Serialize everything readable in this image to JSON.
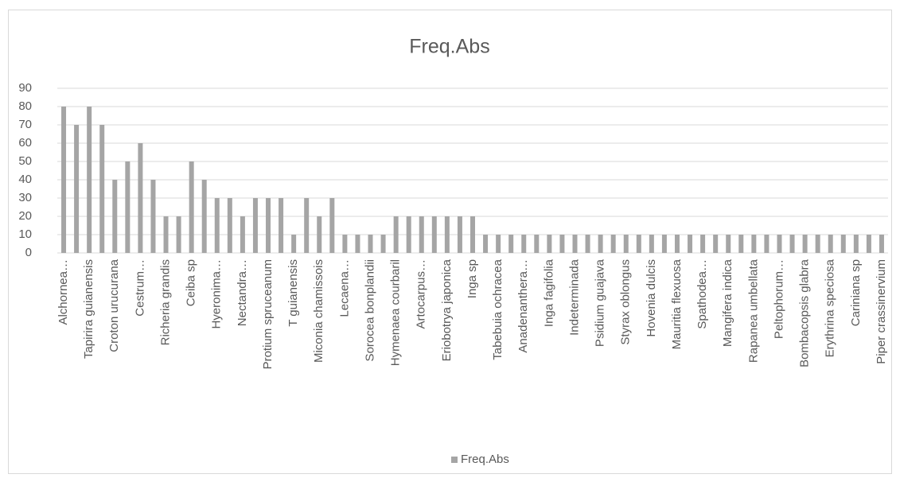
{
  "chart_data": {
    "type": "bar",
    "title": "Freq.Abs",
    "categories": [
      "Alchornea…",
      null,
      "Tapirira guianensis",
      null,
      "Croton urucurana",
      null,
      "Cestrum…",
      null,
      "Richeria grandis",
      null,
      "Ceiba sp",
      null,
      "Hyeronima…",
      null,
      "Nectandra…",
      null,
      "Protium spruceanum",
      null,
      "T guianensis",
      null,
      "Miconia chamissois",
      null,
      "Lecaena…",
      null,
      "Sorocea bonplandii",
      null,
      "Hymenaea courbaril",
      null,
      "Artocarpus…",
      null,
      "Eriobotrya japonica",
      null,
      "Inga sp",
      null,
      "Tabebuia ochracea",
      null,
      "Anadenanthera…",
      null,
      "Inga fagifolia",
      null,
      "Indeterminada",
      null,
      "Psidium guajava",
      null,
      "Styrax oblongus",
      null,
      "Hovenia dulcis",
      null,
      "Mauritia flexuosa",
      null,
      "Spathodea…",
      null,
      "Mangifera indica",
      null,
      "Rapanea umbellata",
      null,
      "Peltophorum…",
      null,
      "Bombacopsis glabra",
      null,
      "Erythrina speciosa",
      null,
      "Cariniana sp",
      null,
      "Piper crassinervium"
    ],
    "series": [
      {
        "name": "Freq.Abs",
        "color": "#a5a5a5",
        "values": [
          80,
          70,
          80,
          70,
          40,
          50,
          60,
          40,
          20,
          20,
          50,
          40,
          30,
          30,
          20,
          30,
          30,
          30,
          10,
          30,
          20,
          30,
          10,
          10,
          10,
          10,
          20,
          20,
          20,
          20,
          20,
          20,
          20,
          10,
          10,
          10,
          10,
          10,
          10,
          10,
          10,
          10,
          10,
          10,
          10,
          10,
          10,
          10,
          10,
          10,
          10,
          10,
          10,
          10,
          10,
          10,
          10,
          10,
          10,
          10,
          10,
          10,
          10,
          10,
          10
        ]
      }
    ],
    "ylim": [
      0,
      90
    ],
    "yticks": [
      0,
      10,
      20,
      30,
      40,
      50,
      60,
      70,
      80,
      90
    ],
    "grid": true,
    "legend": "bottom"
  }
}
